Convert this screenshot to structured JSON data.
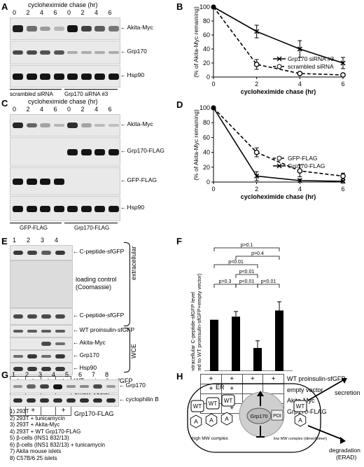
{
  "panels": {
    "A": {
      "letter": "A",
      "title": "cycloheximide chase (hr)",
      "times": [
        "0",
        "2",
        "4",
        "6",
        "0",
        "2",
        "4",
        "6"
      ],
      "rows": [
        "Akita-Myc",
        "Grp170",
        "Hsp90"
      ],
      "groups": [
        "scrambled siRNA",
        "Grp170 siRNA #3"
      ],
      "akita": [
        0.95,
        0.5,
        0.25,
        0.1,
        1.0,
        0.75,
        0.6,
        0.45
      ],
      "grp170": [
        0.7,
        0.7,
        0.65,
        0.65,
        0.15,
        0.15,
        0.15,
        0.15
      ],
      "hsp90": [
        1,
        1,
        1,
        1,
        1,
        1,
        1,
        1
      ]
    },
    "B": {
      "letter": "B"
    },
    "C": {
      "letter": "C",
      "title": "cycloheximide chase (hr)",
      "times": [
        "0",
        "2",
        "4",
        "6",
        "0",
        "2",
        "4",
        "6"
      ],
      "rows": [
        "Akita-Myc",
        "Grp170-FLAG",
        "GFP-FLAG",
        "Hsp90"
      ],
      "groups": [
        "GFP-FLAG",
        "Grp170-FLAG"
      ],
      "akita": [
        0.9,
        0.55,
        0.2,
        0.1,
        0.85,
        0.2,
        0.08,
        0.05
      ],
      "grp170flag": [
        0,
        0,
        0,
        0,
        1,
        1,
        1,
        1
      ],
      "gfpflag": [
        1,
        1,
        1,
        1,
        0,
        0,
        0,
        0
      ],
      "hsp90": [
        1,
        1,
        1,
        1,
        1,
        1,
        1,
        1
      ]
    },
    "D": {
      "letter": "D"
    },
    "E": {
      "letter": "E",
      "lanes": [
        "1",
        "2",
        "3",
        "4"
      ],
      "rows": [
        "C-peptide-sfGFP",
        "loading control (Coomassie)",
        "C-peptide-sfGFP",
        "WT proinsulin-sfGFP",
        "Akita-Myc",
        "Grp170",
        "Hsp90"
      ],
      "bracket_extra": "extracellular",
      "bracket_wce": "WCE",
      "conditions": [
        "WT proinsulin-sfGFP",
        "empty vector",
        "Akita-Myc",
        "Grp170-FLAG"
      ],
      "signs": [
        [
          "+",
          "+",
          "+",
          "+"
        ],
        [
          "+",
          "+",
          "",
          ""
        ],
        [
          "",
          "",
          "+",
          "+"
        ],
        [
          "",
          "+",
          "",
          "+"
        ]
      ]
    },
    "F": {
      "letter": "F",
      "conditions": [
        "WT proinsulin-sfGFP",
        "empty vector",
        "Akita-Myc",
        "Grp170-FLAG"
      ],
      "signs": [
        [
          "+",
          "+",
          "+",
          "+"
        ],
        [
          "+",
          "+",
          "",
          ""
        ],
        [
          "",
          "",
          "+",
          "+"
        ],
        [
          "",
          "+",
          "",
          "+"
        ]
      ],
      "pvals": [
        "p>0.1",
        "p>0.4",
        "p<0.01",
        "p<0.01",
        "p>0.3",
        "p<0.01",
        "p<0.01"
      ]
    },
    "G": {
      "letter": "G",
      "lanes": [
        "1",
        "2",
        "3",
        "4",
        "5",
        "6",
        "7",
        "8"
      ],
      "rows": [
        "Grp170",
        "cyclophilin B"
      ],
      "grp170": [
        0.3,
        0.55,
        0.75,
        1.0,
        0.3,
        0.35,
        0.7,
        0.25
      ],
      "legend": [
        "1) 293T",
        "2) 293T + tunicamycin",
        "3) 293T + Akita-Myc",
        "4) 293T + WT Grp170-FLAG",
        "5) β-cells (INS1 832/13)",
        "6) β-cells (INS1 832/13) + tunicamycin",
        "7) Akita mouse islets",
        "8) C57B/6 25 islets"
      ]
    },
    "H": {
      "letter": "H",
      "er": "ER",
      "wt": "WT",
      "a": "A",
      "grp170": "Grp170",
      "pdi": "PDI",
      "high": "high MW complex",
      "low": "low MW complex (dimer/trimer)",
      "secretion": "secretion",
      "degradation": "degradation (ERAD)"
    }
  },
  "chart_data": [
    {
      "type": "line",
      "panel": "B",
      "xlabel": "cycloheximide chase (hr)",
      "ylabel": "(% of Akita-Myc remaining)",
      "x": [
        0,
        2,
        4,
        6
      ],
      "ylim": [
        0,
        100
      ],
      "xticks": [
        "0",
        "2",
        "4",
        "6"
      ],
      "yticks": [
        "0",
        "20",
        "40",
        "60",
        "80",
        "100"
      ],
      "series": [
        {
          "name": "Grp170 siRNA #3",
          "values": [
            100,
            65,
            40,
            20
          ],
          "err": [
            0,
            9,
            12,
            8
          ],
          "style": "solid",
          "marker": "x"
        },
        {
          "name": "scrambled siRNA",
          "values": [
            100,
            18,
            5,
            3
          ],
          "err": [
            0,
            7,
            2,
            2
          ],
          "style": "dashed",
          "marker": "o"
        }
      ]
    },
    {
      "type": "line",
      "panel": "D",
      "xlabel": "cycloheximide chase (hr)",
      "ylabel": "(% of Akita-Myc remaining)",
      "x": [
        0,
        2,
        4,
        6
      ],
      "ylim": [
        0,
        100
      ],
      "xticks": [
        "0",
        "2",
        "4",
        "6"
      ],
      "yticks": [
        "0",
        "20",
        "40",
        "60",
        "80",
        "100"
      ],
      "series": [
        {
          "name": "GFP-FLAG",
          "values": [
            100,
            40,
            15,
            8
          ],
          "err": [
            0,
            6,
            8,
            4
          ],
          "style": "dashed",
          "marker": "o"
        },
        {
          "name": "Grp170-FLAG",
          "values": [
            100,
            8,
            2,
            1
          ],
          "err": [
            0,
            6,
            2,
            1
          ],
          "style": "solid",
          "marker": "x"
        }
      ]
    },
    {
      "type": "bar",
      "panel": "F",
      "ylabel": "extracellular C-peptide-sfGFP level (normalized to WT proinsulin-sfGFP+empty vector)",
      "categories": [
        "1",
        "2",
        "3",
        "4"
      ],
      "values": [
        1.0,
        1.06,
        0.45,
        1.18
      ],
      "err": [
        0,
        0.1,
        0.14,
        0.17
      ],
      "ylim": [
        0,
        1.5
      ]
    }
  ]
}
